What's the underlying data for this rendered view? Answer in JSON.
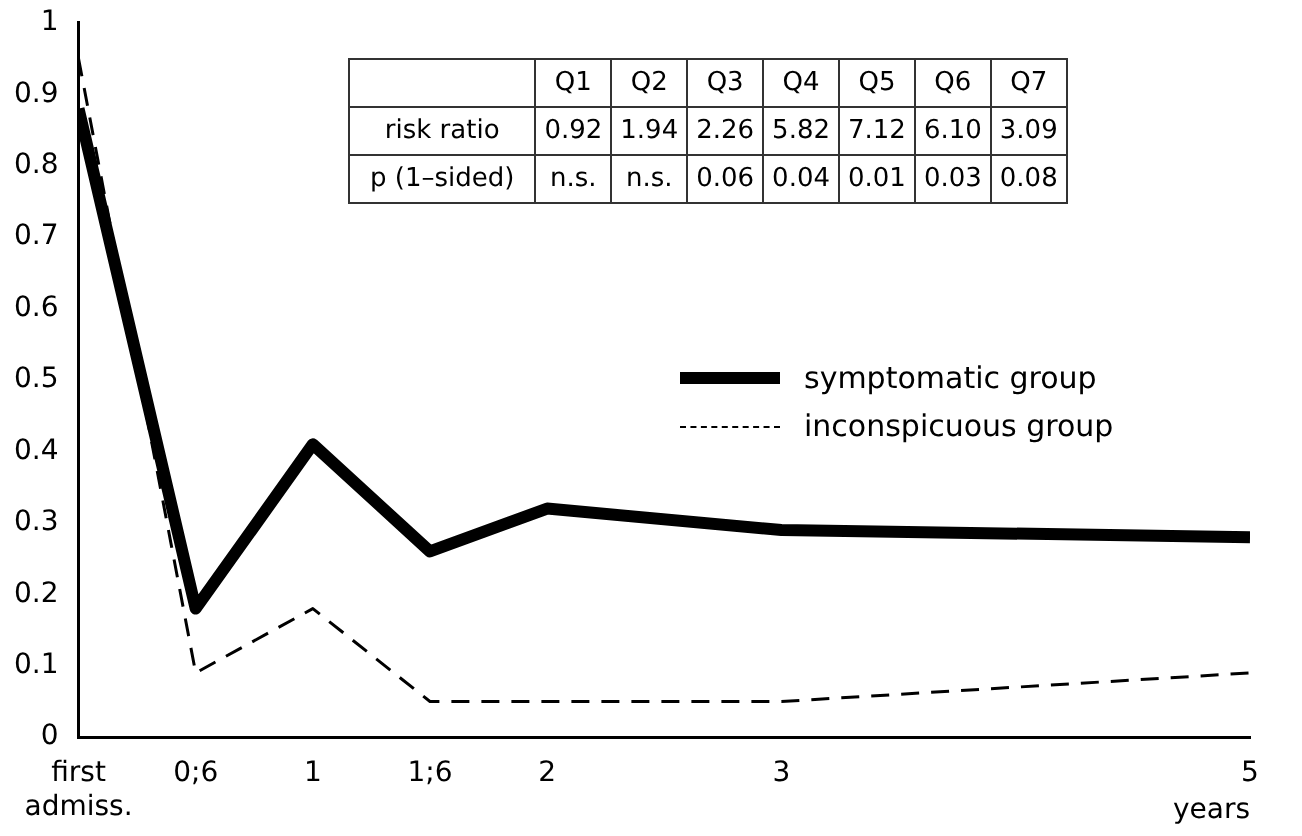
{
  "chart_data": {
    "type": "line",
    "xlabel": "years",
    "x": [
      0,
      0.5,
      1,
      1.5,
      2,
      3,
      5
    ],
    "series": [
      {
        "name": "symptomatic group",
        "color": "#000000",
        "line_style": "solid",
        "values": [
          0.88,
          0.18,
          0.41,
          0.26,
          0.32,
          0.29,
          0.28
        ]
      },
      {
        "name": "inconspicuous group",
        "color": "#000000",
        "line_style": "dashed",
        "values": [
          0.95,
          0.09,
          0.18,
          0.05,
          0.05,
          0.05,
          0.09
        ]
      }
    ],
    "xlim": [
      0,
      5
    ],
    "xticks": [
      {
        "value": 0,
        "label": "first admiss."
      },
      {
        "value": 0.5,
        "label": "0;6"
      },
      1,
      {
        "value": 1.5,
        "label": "1;6"
      },
      2,
      3,
      5
    ],
    "ylim": [
      0,
      1
    ],
    "yticks": [
      0,
      0.1,
      0.2,
      0.3,
      0.4,
      0.5,
      0.6,
      0.7,
      0.8,
      0.9,
      1
    ],
    "grid": false,
    "marker": "none",
    "legend": "right",
    "annotations": [
      "Q1",
      "Q2",
      "Q3",
      "Q4",
      "Q5",
      "Q6",
      "Q7",
      "risk ratio",
      "0.92",
      "1.94",
      "2.26",
      "5.82",
      "7.12",
      "6.10",
      "3.09",
      "p (1–sided)",
      "n.s.",
      "n.s.",
      "0.06",
      "0.04",
      "0.01",
      "0.03",
      "0.08"
    ]
  }
}
